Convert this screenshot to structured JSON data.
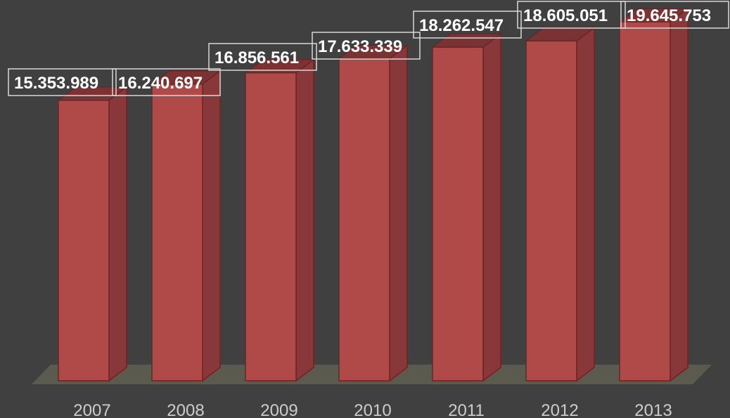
{
  "chart_data": {
    "type": "bar",
    "categories": [
      "2007",
      "2008",
      "2009",
      "2010",
      "2011",
      "2012",
      "2013"
    ],
    "values": [
      15353989,
      16240697,
      16856561,
      17633339,
      18262547,
      18605051,
      19645753
    ],
    "data_labels": [
      "15.353.989",
      "16.240.697",
      "16.856.561",
      "17.633.339",
      "18.262.547",
      "18.605.051",
      "19.645.753"
    ],
    "ylim": [
      0,
      20000000
    ],
    "grid": false,
    "legend": "none",
    "style": "3d-column",
    "colors": {
      "background": "#404040",
      "bar_front": "#B04A49",
      "bar_side": "#883838",
      "bar_top": "#7A3332",
      "bar_edge": "#6B2524",
      "floor": "#5A5B4E",
      "label_text": "#FFFFFF",
      "label_border": "#D8D8D8",
      "tick_text": "#CCCCCC"
    }
  }
}
